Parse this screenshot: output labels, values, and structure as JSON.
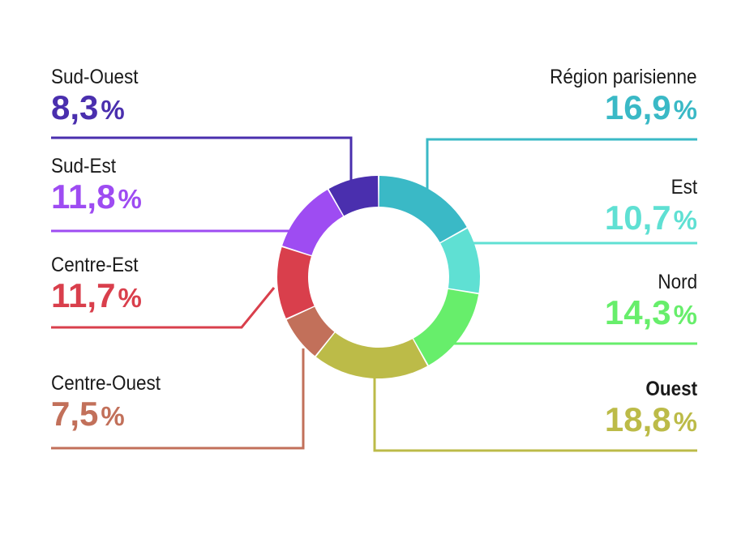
{
  "chart_data": {
    "type": "pie",
    "donut": true,
    "slices": [
      {
        "name": "Région parisienne",
        "value": 16.9,
        "label": "16,9",
        "color": "#3ab9c6",
        "side": "right",
        "emphasis": false
      },
      {
        "name": "Est",
        "value": 10.7,
        "label": "10,7",
        "color": "#5fe0d3",
        "side": "right",
        "emphasis": false
      },
      {
        "name": "Nord",
        "value": 14.3,
        "label": "14,3",
        "color": "#67ee6b",
        "side": "right",
        "emphasis": false
      },
      {
        "name": "Ouest",
        "value": 18.8,
        "label": "18,8",
        "color": "#bcbb48",
        "side": "right",
        "emphasis": true
      },
      {
        "name": "Centre-Ouest",
        "value": 7.5,
        "label": "7,5",
        "color": "#c2705a",
        "side": "left",
        "emphasis": false
      },
      {
        "name": "Centre-Est",
        "value": 11.7,
        "label": "11,7",
        "color": "#d93f4c",
        "side": "left",
        "emphasis": false
      },
      {
        "name": "Sud-Est",
        "value": 11.8,
        "label": "11,8",
        "color": "#9e4cf2",
        "side": "left",
        "emphasis": false
      },
      {
        "name": "Sud-Ouest",
        "value": 8.3,
        "label": "8,3",
        "color": "#4a2fae",
        "side": "left",
        "emphasis": false
      }
    ],
    "unit": "%",
    "start": "top, clockwise",
    "legend": "callout labels on left and right with leader lines"
  }
}
